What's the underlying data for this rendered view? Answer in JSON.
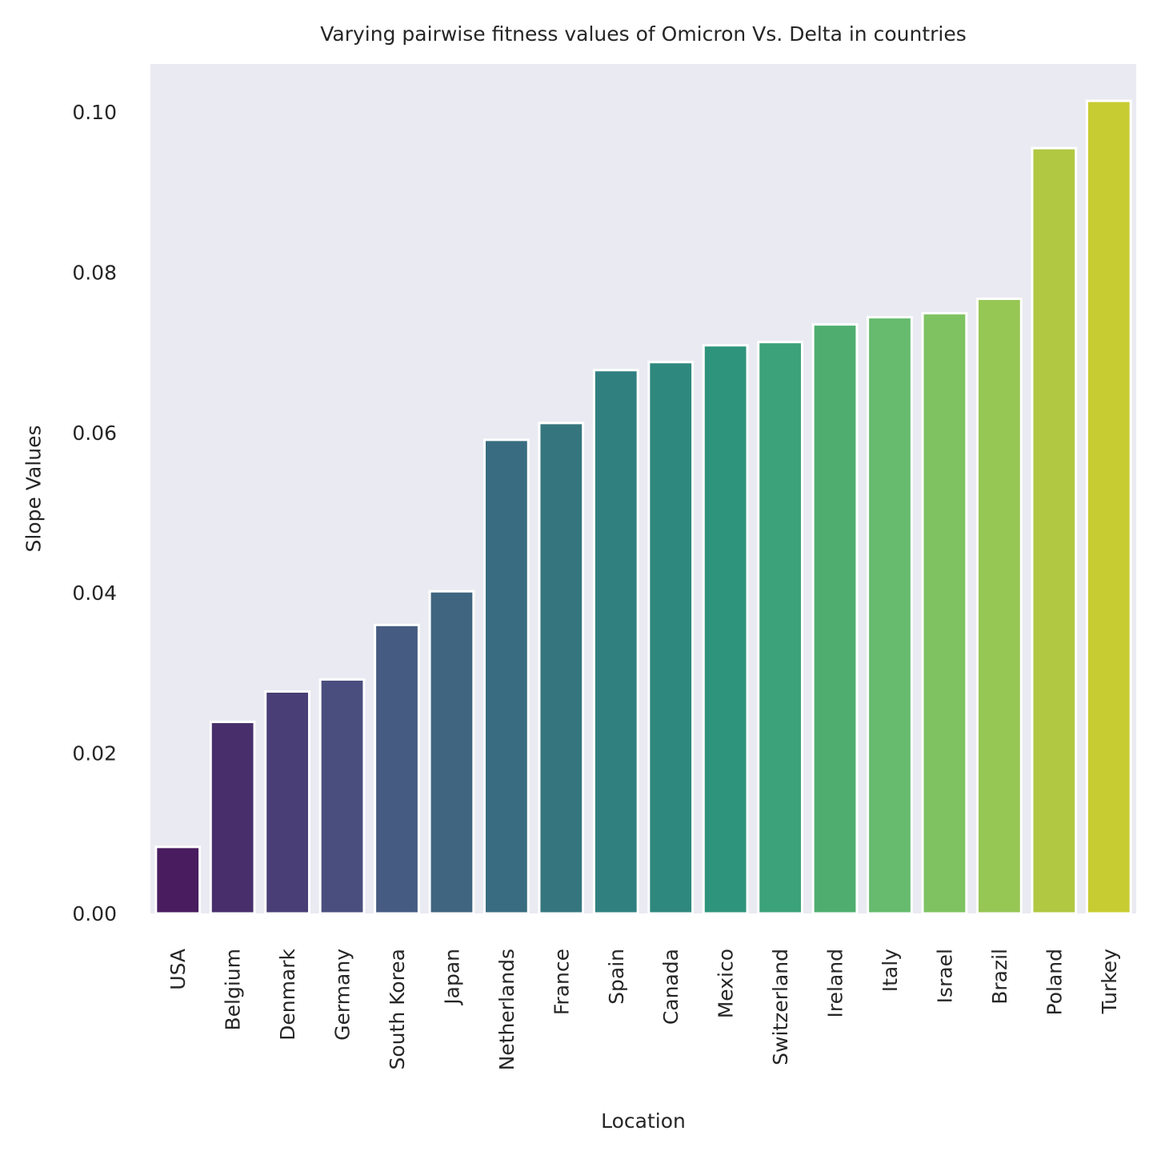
{
  "chart_data": {
    "type": "bar",
    "title": "Varying pairwise fitness values of Omicron Vs. Delta in countries",
    "xlabel": "Location",
    "ylabel": "Slope Values",
    "categories": [
      "USA",
      "Belgium",
      "Denmark",
      "Germany",
      "South Korea",
      "Japan",
      "Netherlands",
      "France",
      "Spain",
      "Canada",
      "Mexico",
      "Switzerland",
      "Ireland",
      "Italy",
      "Israel",
      "Brazil",
      "Poland",
      "Turkey"
    ],
    "values": [
      0.0083,
      0.0239,
      0.0277,
      0.0292,
      0.036,
      0.0402,
      0.0591,
      0.0612,
      0.0678,
      0.0688,
      0.0709,
      0.0713,
      0.0735,
      0.0744,
      0.0749,
      0.0767,
      0.0955,
      0.1014
    ],
    "colors": [
      "#481c5e",
      "#482f6c",
      "#493f76",
      "#4a4e7e",
      "#455b81",
      "#3f6581",
      "#396c80",
      "#35767e",
      "#318080",
      "#2f887d",
      "#2f947c",
      "#3ca27a",
      "#4fae6f",
      "#66bb6e",
      "#7ec262",
      "#96c654",
      "#b0c842",
      "#c7cc32"
    ],
    "yticks": [
      "0.00",
      "0.02",
      "0.04",
      "0.06",
      "0.08",
      "0.10"
    ],
    "ylim": [
      0,
      0.106
    ],
    "background": "#eaeaf2",
    "grid": false,
    "legend": "none"
  }
}
